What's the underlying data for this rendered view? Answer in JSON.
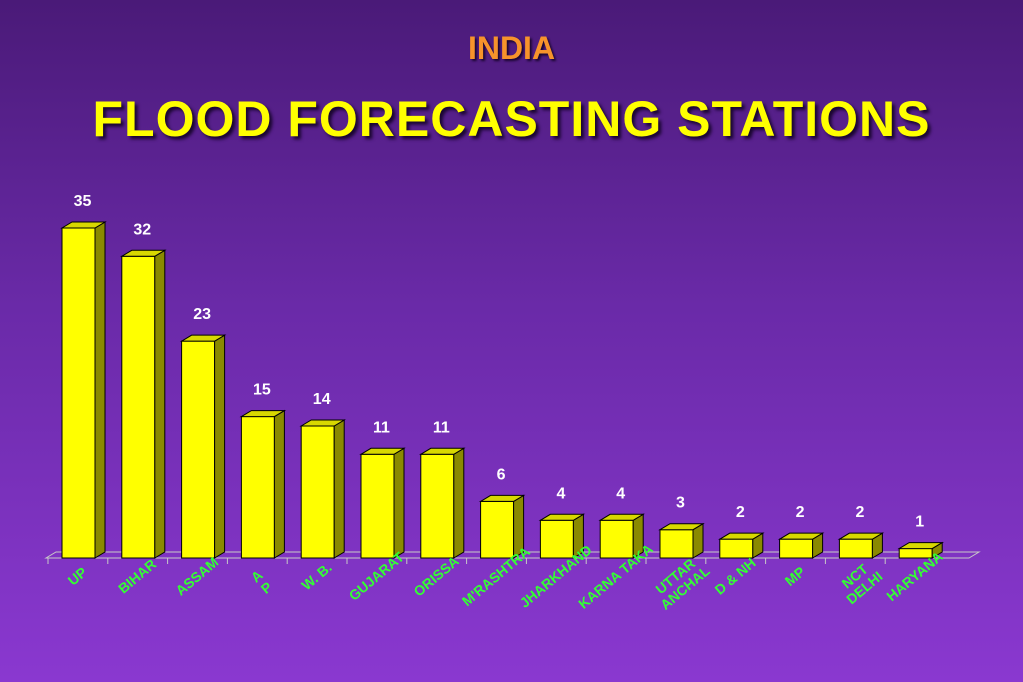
{
  "header": {
    "subtitle": "INDIA",
    "title": "FLOOD  FORECASTING  STATIONS"
  },
  "colors": {
    "bar_front": "#ffff00",
    "bar_side": "#8a8a00",
    "bar_top": "#d8d800",
    "label": "#33ff33",
    "value": "#ffffff"
  },
  "chart_data": {
    "type": "bar",
    "title": "FLOOD  FORECASTING  STATIONS",
    "categories": [
      "UP",
      "BIHAR",
      "ASSAM",
      "A\nP",
      "W. B.",
      "GUJARAT",
      "ORISSA",
      "M'RASHTRA",
      "JHARKHAND",
      "KARNA TAKA",
      "UTTAR\nANCHAL",
      "D & NH",
      "MP",
      "NCT\nDELHI",
      "HARYANA"
    ],
    "values": [
      35,
      32,
      23,
      15,
      14,
      11,
      11,
      6,
      4,
      4,
      3,
      2,
      2,
      2,
      1
    ],
    "xlabel": "",
    "ylabel": "",
    "ylim": [
      0,
      35
    ],
    "grid": false,
    "legend": "none"
  }
}
